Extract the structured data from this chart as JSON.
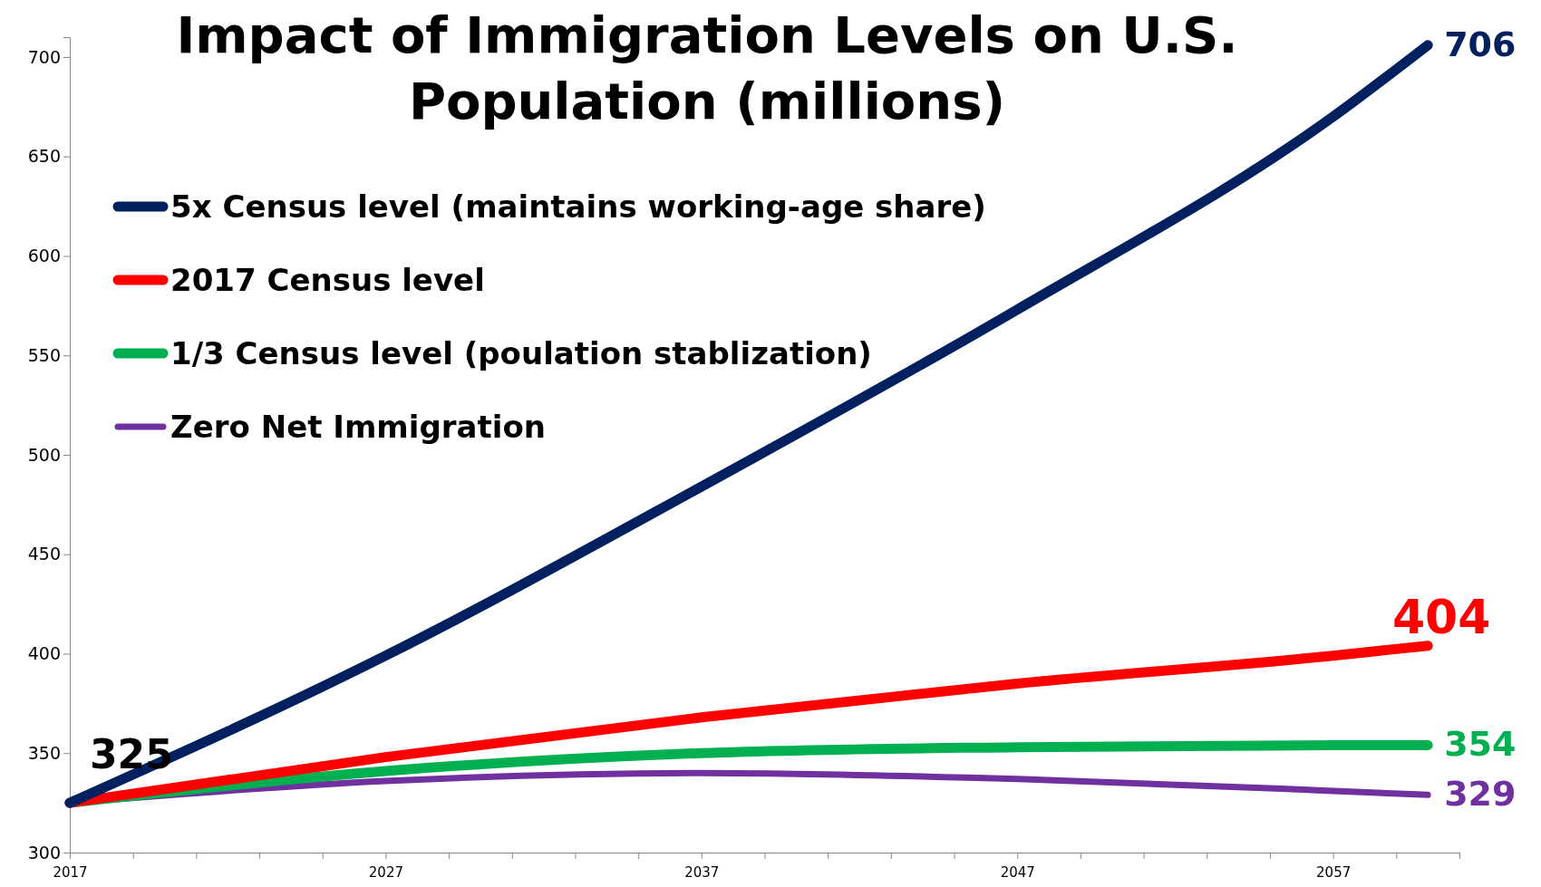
{
  "chart_data": {
    "type": "line",
    "title": "Impact of Immigration Levels on U.S. Population (millions)",
    "x": [
      2017,
      2027,
      2037,
      2047,
      2057,
      2060
    ],
    "xlim": [
      2017,
      2061
    ],
    "xticks": [
      2017,
      {
        "value": 2019,
        "label": null
      },
      {
        "value": 2021,
        "label": null
      },
      {
        "value": 2023,
        "label": null
      },
      {
        "value": 2025,
        "label": null
      },
      2027,
      {
        "value": 2029,
        "label": null
      },
      {
        "value": 2031,
        "label": null
      },
      {
        "value": 2033,
        "label": null
      },
      {
        "value": 2035,
        "label": null
      },
      2037,
      {
        "value": 2039,
        "label": null
      },
      {
        "value": 2041,
        "label": null
      },
      {
        "value": 2043,
        "label": null
      },
      {
        "value": 2045,
        "label": null
      },
      2047,
      {
        "value": 2049,
        "label": null
      },
      {
        "value": 2051,
        "label": null
      },
      {
        "value": 2053,
        "label": null
      },
      {
        "value": 2055,
        "label": null
      },
      2057,
      {
        "value": 2059,
        "label": null
      },
      {
        "value": 2061,
        "label": null
      }
    ],
    "ylim": [
      300,
      710
    ],
    "yticks": [
      300,
      350,
      400,
      450,
      500,
      550,
      600,
      650,
      700
    ],
    "grid": false,
    "legend": "top left",
    "marker": "none",
    "line_style": "solid",
    "series": [
      {
        "name": "5x Census level (maintains working-age share)",
        "color": "#002060",
        "values": [
          325,
          399,
          484,
          573,
          670,
          706
        ],
        "value_labels": [
          null,
          null,
          null,
          null,
          null,
          "706"
        ]
      },
      {
        "name": "2017 Census level",
        "color": "#ff0000",
        "values": [
          325,
          348,
          368,
          385,
          399,
          404
        ],
        "value_labels": [
          null,
          null,
          null,
          null,
          null,
          "404"
        ]
      },
      {
        "name": "1/3 Census level (poulation stablization)",
        "color": "#00b050",
        "values": [
          325,
          341,
          350,
          353,
          354,
          354
        ],
        "value_labels": [
          null,
          null,
          null,
          null,
          null,
          "354"
        ]
      },
      {
        "name": "Zero Net Immigration",
        "color": "#7030a0",
        "values": [
          325,
          336,
          340,
          337,
          331,
          329
        ],
        "value_labels": [
          null,
          null,
          null,
          null,
          null,
          "329"
        ]
      }
    ],
    "annotations": [
      {
        "text": "325",
        "x": 2017,
        "y": 325
      }
    ]
  }
}
